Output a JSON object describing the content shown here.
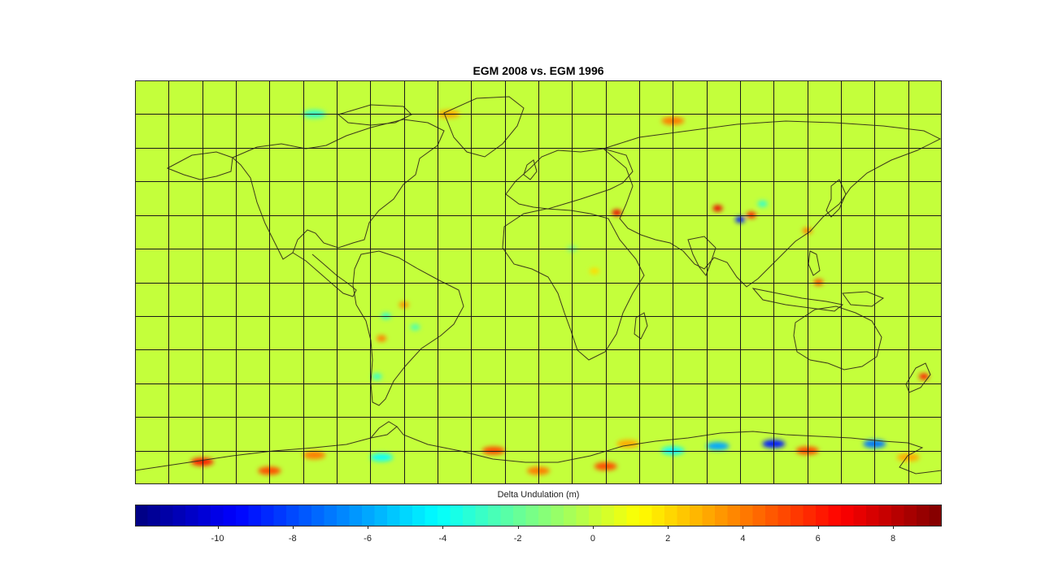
{
  "chart_data": {
    "type": "heatmap",
    "title": "EGM 2008 vs. EGM 1996",
    "colorbar": {
      "label": "Delta Undulation (m)",
      "min": -12.2,
      "max": 9.3,
      "ticks": [
        -10,
        -8,
        -6,
        -4,
        -2,
        0,
        2,
        4,
        6,
        8
      ],
      "tick_labels": [
        "-10",
        "-8",
        "-6",
        "-4",
        "-2",
        "0",
        "2",
        "4",
        "6",
        "8"
      ],
      "colormap": "jet",
      "levels": 64
    },
    "map": {
      "projection": "equirectangular",
      "lon_range": [
        -180,
        180
      ],
      "lat_range": [
        -90,
        90
      ],
      "graticule_step_deg": 15,
      "background_value": 0,
      "coastlines": true
    },
    "anomalies": [
      {
        "lon": -60,
        "lat": -10,
        "value": 3.5
      },
      {
        "lon": -68,
        "lat": -15,
        "value": -3
      },
      {
        "lon": -70,
        "lat": -25,
        "value": 4
      },
      {
        "lon": -55,
        "lat": -20,
        "value": -2.5
      },
      {
        "lon": -72,
        "lat": -42,
        "value": -3
      },
      {
        "lon": 35,
        "lat": 31,
        "value": 7
      },
      {
        "lon": 25,
        "lat": 5,
        "value": 2
      },
      {
        "lon": 15,
        "lat": 15,
        "value": -1.5
      },
      {
        "lon": 80,
        "lat": 33,
        "value": 7
      },
      {
        "lon": 90,
        "lat": 28,
        "value": -9
      },
      {
        "lon": 95,
        "lat": 30,
        "value": 6
      },
      {
        "lon": 100,
        "lat": 35,
        "value": -3
      },
      {
        "lon": 120,
        "lat": 23,
        "value": 4
      },
      {
        "lon": 125,
        "lat": 0,
        "value": 5
      },
      {
        "lon": 172,
        "lat": -42,
        "value": 6
      },
      {
        "lon": -100,
        "lat": 75,
        "value": -3
      },
      {
        "lon": -40,
        "lat": 75,
        "value": 3
      },
      {
        "lon": 60,
        "lat": 72,
        "value": 4
      },
      {
        "lon": -20,
        "lat": -75,
        "value": 5
      },
      {
        "lon": 40,
        "lat": -72,
        "value": 3
      },
      {
        "lon": 60,
        "lat": -75,
        "value": -4
      },
      {
        "lon": 80,
        "lat": -73,
        "value": -6
      },
      {
        "lon": 105,
        "lat": -72,
        "value": -9
      },
      {
        "lon": 120,
        "lat": -75,
        "value": 5
      },
      {
        "lon": 150,
        "lat": -72,
        "value": -7
      },
      {
        "lon": 165,
        "lat": -78,
        "value": 3
      },
      {
        "lon": -150,
        "lat": -80,
        "value": 6
      },
      {
        "lon": -100,
        "lat": -77,
        "value": 4
      },
      {
        "lon": -70,
        "lat": -78,
        "value": -4
      },
      {
        "lon": -120,
        "lat": -84,
        "value": 5
      },
      {
        "lon": 0,
        "lat": -84,
        "value": 4
      },
      {
        "lon": 30,
        "lat": -82,
        "value": 5
      }
    ]
  }
}
